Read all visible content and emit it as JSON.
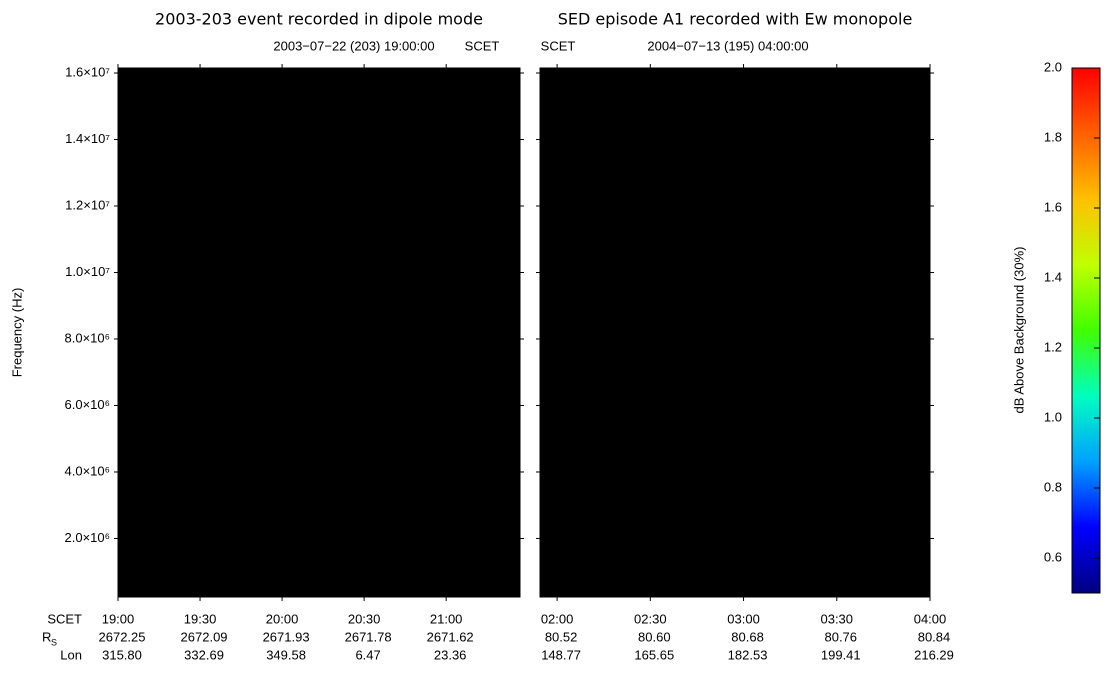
{
  "chart_data": [
    {
      "type": "heatmap",
      "title": "2003-203 event recorded in dipole mode",
      "date_label": "2003−07−22 (203) 19:00:00",
      "scet_label": "SCET",
      "y_label": "Frequency (Hz)",
      "xlim": [
        "19:00",
        "21:27"
      ],
      "xticks": [
        "19:00",
        "19:30",
        "20:00",
        "20:30",
        "21:00"
      ],
      "row_labels": [
        "SCET",
        "R",
        "Lon"
      ],
      "row_label_sub": "S",
      "rs_labels": [
        "2672.25",
        "2672.09",
        "2671.93",
        "2671.78",
        "2671.62"
      ],
      "lon_labels": [
        "315.80",
        "332.69",
        "349.58",
        "6.47",
        "23.36"
      ],
      "ylim": [
        240000,
        16150000
      ],
      "yticks": [
        {
          "value": 2000000,
          "label": "2.0×10⁶"
        },
        {
          "value": 4000000,
          "label": "4.0×10⁶"
        },
        {
          "value": 6000000,
          "label": "6.0×10⁶"
        },
        {
          "value": 8000000,
          "label": "8.0×10⁶"
        },
        {
          "value": 10000000,
          "label": "1.0×10⁷"
        },
        {
          "value": 12000000,
          "label": "1.2×10⁷"
        },
        {
          "value": 14000000,
          "label": "1.4×10⁷"
        },
        {
          "value": 16000000,
          "label": "1.6×10⁷"
        }
      ]
    },
    {
      "type": "heatmap",
      "title": "SED episode A1 recorded with Ew monopole",
      "date_label": "2004−07−13 (195) 04:00:00",
      "scet_label": "SCET",
      "xlim": [
        "01:54:30",
        "04:00"
      ],
      "xticks": [
        "02:00",
        "02:30",
        "03:00",
        "03:30",
        "04:00"
      ],
      "rs_labels": [
        "80.52",
        "80.60",
        "80.68",
        "80.76",
        "80.84"
      ],
      "lon_labels": [
        "148.77",
        "165.65",
        "182.53",
        "199.41",
        "216.29"
      ],
      "ylim": [
        240000,
        16150000
      ],
      "yticks": [
        2000000,
        4000000,
        6000000,
        8000000,
        10000000,
        12000000,
        14000000,
        16000000
      ]
    },
    {
      "type": "colorbar",
      "label": "dB Above Background (30%)",
      "ylim": [
        0.5,
        2.0
      ],
      "yticks": [
        0.6,
        0.8,
        {
          "value": 1.0,
          "label": "1.0"
        },
        1.2,
        1.4,
        1.6,
        1.8,
        {
          "value": 2.0,
          "label": "2.0"
        }
      ],
      "colors": [
        "#000080",
        "#0000ff",
        "#00a0ff",
        "#00ffc0",
        "#40ff00",
        "#c0ff00",
        "#ffc000",
        "#ff6000",
        "#ff0000"
      ]
    }
  ]
}
